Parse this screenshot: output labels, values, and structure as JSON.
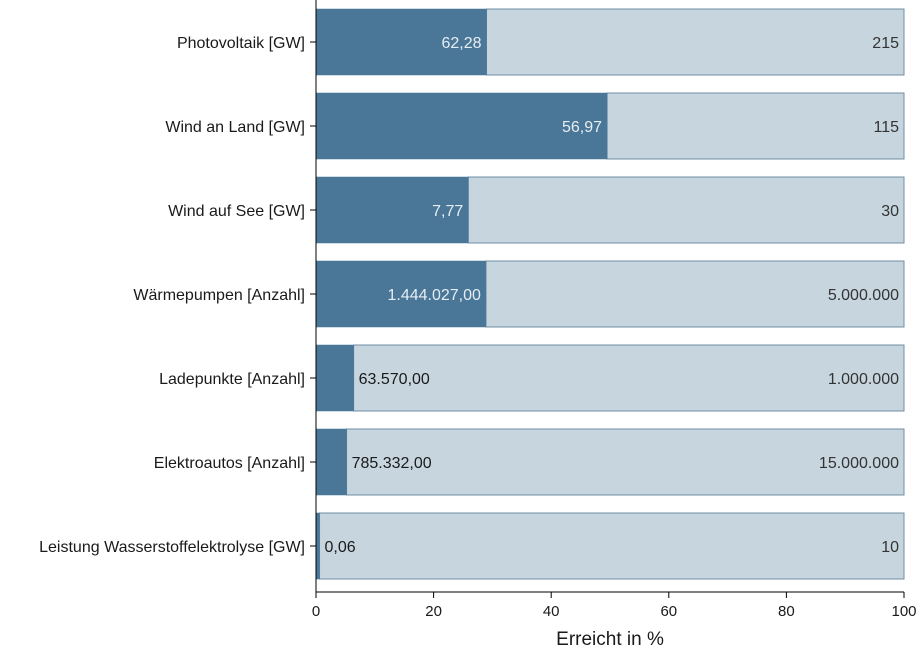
{
  "chart_data": {
    "type": "bar",
    "orientation": "horizontal",
    "stacked_to_100": true,
    "xlabel": "Erreicht in %",
    "xlim": [
      0,
      100
    ],
    "xticks": [
      0,
      20,
      40,
      60,
      80,
      100
    ],
    "grid": false,
    "colors": {
      "achieved": "#4a7798",
      "target": "#c7d5df",
      "target_border": "#6f8ea4"
    },
    "categories": [
      "Photovoltaik [GW]",
      "Wind an Land [GW]",
      "Wind auf See [GW]",
      "Wärmepumpen [Anzahl]",
      "Ladepunkte [Anzahl]",
      "Elektroautos [Anzahl]",
      "Leistung Wasserstoffelektrolyse [GW]"
    ],
    "series": [
      {
        "values": [
          29.0,
          49.5,
          25.9,
          28.9,
          6.4,
          5.2,
          0.6
        ]
      },
      {
        "values": [
          71.0,
          50.5,
          74.1,
          71.1,
          93.6,
          94.8,
          99.4
        ]
      }
    ],
    "achieved_labels": [
      "62,28",
      "56,97",
      "7,77",
      "1.444.027,00",
      "63.570,00",
      "785.332,00",
      "0,06"
    ],
    "target_labels": [
      "215",
      "115",
      "30",
      "5.000.000",
      "1.000.000",
      "15.000.000",
      "10"
    ]
  }
}
